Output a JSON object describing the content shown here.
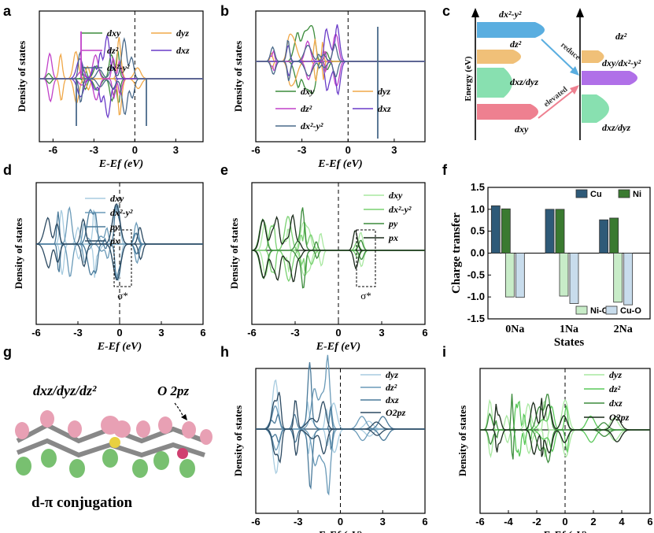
{
  "colors": {
    "green": "#3c8c3c",
    "orange": "#f0a848",
    "magenta": "#c040c8",
    "purple": "#6a3cc8",
    "steel": "#4a6a8a",
    "dark_blue": "#2c4a62",
    "light_blue": "#a8cce0",
    "mid_blue": "#6a9ab8",
    "light_green": "#a8e8a0",
    "mid_green": "#5ac85a",
    "dark": "#1a2a1a",
    "bar_cu": "#2e5a78",
    "bar_ni": "#3a7a30",
    "bar_nio": "#c8ecc8",
    "bar_cuo": "#c8dcec"
  },
  "panels": {
    "a": {
      "letter": "a"
    },
    "b": {
      "letter": "b"
    },
    "c": {
      "letter": "c"
    },
    "d": {
      "letter": "d"
    },
    "e": {
      "letter": "e"
    },
    "f": {
      "letter": "f"
    },
    "g": {
      "letter": "g"
    },
    "h": {
      "letter": "h"
    },
    "i": {
      "letter": "i"
    }
  },
  "dos_ylabel": "Density of states",
  "chart_data": [
    {
      "panel": "a",
      "type": "line",
      "xlabel": "E-Ef (eV)",
      "ylabel": "Density of states",
      "xticks": [
        "-6",
        "-3",
        "0",
        "3"
      ],
      "xlim": [
        -7,
        5
      ],
      "legend": [
        {
          "label": "dxy",
          "color": "#3c8c3c"
        },
        {
          "label": "dyz",
          "color": "#f0a848"
        },
        {
          "label": "dz²",
          "color": "#c040c8"
        },
        {
          "label": "dxz",
          "color": "#6a3cc8"
        },
        {
          "label": "dx²-y²",
          "color": "#4a6a8a"
        }
      ]
    },
    {
      "panel": "b",
      "type": "line",
      "xlabel": "E-Ef (eV)",
      "ylabel": "Density of states",
      "xticks": [
        "-6",
        "-3",
        "0",
        "3"
      ],
      "xlim": [
        -6,
        5
      ],
      "legend": [
        {
          "label": "dxy",
          "color": "#3c8c3c"
        },
        {
          "label": "dyz",
          "color": "#f0a848"
        },
        {
          "label": "dz²",
          "color": "#c040c8"
        },
        {
          "label": "dxz",
          "color": "#6a3cc8"
        },
        {
          "label": "dx²-y²",
          "color": "#4a6a8a"
        }
      ]
    },
    {
      "panel": "d",
      "type": "line",
      "xlabel": "E-Ef (eV)",
      "ylabel": "Density of states",
      "xticks": [
        "-6",
        "-3",
        "0",
        "3",
        "6"
      ],
      "xlim": [
        -6,
        6
      ],
      "annotation": "σ*",
      "legend": [
        {
          "label": "dxy",
          "color": "#a8cce0"
        },
        {
          "label": "dx²-y²",
          "color": "#6a9ab8"
        },
        {
          "label": "py",
          "color": "#4a7a9a"
        },
        {
          "label": "px",
          "color": "#2c4a62"
        }
      ]
    },
    {
      "panel": "e",
      "type": "line",
      "xlabel": "E-Ef (eV)",
      "ylabel": "Density of states",
      "xticks": [
        "-6",
        "-3",
        "0",
        "3",
        "6"
      ],
      "xlim": [
        -6,
        6
      ],
      "annotation": "σ*",
      "legend": [
        {
          "label": "dxy",
          "color": "#a8e8a0"
        },
        {
          "label": "dx²-y²",
          "color": "#78d070"
        },
        {
          "label": "py",
          "color": "#3c8c3c"
        },
        {
          "label": "px",
          "color": "#1a2a1a"
        }
      ]
    },
    {
      "panel": "f",
      "type": "bar",
      "title": "",
      "xlabel": "States",
      "ylabel": "Charge transfer",
      "categories": [
        "0Na",
        "1Na",
        "2Na"
      ],
      "ylim": [
        -1.5,
        1.5
      ],
      "yticks": [
        "1.5",
        "1.0",
        "0.5",
        "0.0",
        "-0.5",
        "-1.0",
        "-1.5"
      ],
      "series": [
        {
          "name": "Cu",
          "color": "#2e5a78",
          "values": [
            1.08,
            1.0,
            0.76
          ]
        },
        {
          "name": "Ni",
          "color": "#3a7a30",
          "values": [
            1.01,
            1.0,
            0.8
          ]
        },
        {
          "name": "Ni-O",
          "color": "#c8ecc8",
          "values": [
            -1.0,
            -0.98,
            -1.12
          ]
        },
        {
          "name": "Cu-O",
          "color": "#c8dcec",
          "values": [
            -1.01,
            -1.15,
            -1.18
          ]
        }
      ]
    },
    {
      "panel": "h",
      "type": "line",
      "xlabel": "E-Ef (eV)",
      "ylabel": "Density of states",
      "xticks": [
        "-6",
        "-3",
        "0",
        "3",
        "6"
      ],
      "xlim": [
        -6,
        6
      ],
      "legend": [
        {
          "label": "dyz",
          "color": "#a8cce0"
        },
        {
          "label": "dz²",
          "color": "#6a9ab8"
        },
        {
          "label": "dxz",
          "color": "#4a7a9a"
        },
        {
          "label": "O2pz",
          "color": "#2c4a62"
        }
      ]
    },
    {
      "panel": "i",
      "type": "line",
      "xlabel": "E-Ef (eV)",
      "ylabel": "Density of states",
      "xticks": [
        "-6",
        "-4",
        "-2",
        "0",
        "2",
        "4",
        "6"
      ],
      "xlim": [
        -6,
        6
      ],
      "legend": [
        {
          "label": "dyz",
          "color": "#a8e8a0"
        },
        {
          "label": "dz²",
          "color": "#5ac85a"
        },
        {
          "label": "dxz",
          "color": "#3c8c3c"
        },
        {
          "label": "O2pz",
          "color": "#1a2a1a"
        }
      ]
    }
  ],
  "diagram_c": {
    "ylabel": "Energy (eV)",
    "left_levels": [
      "dx²-y²",
      "dz²",
      "dxz/dyz",
      "dxy"
    ],
    "right_levels": [
      "dz²",
      "dxy/dx²-y²",
      "dxz/dyz"
    ],
    "arrow_reduce": "reduce",
    "arrow_elevated": "elevated"
  },
  "panel_g": {
    "orbital_label": "dxz/dyz/dz²",
    "o_label": "O 2pz",
    "caption": "d-π conjugation"
  }
}
